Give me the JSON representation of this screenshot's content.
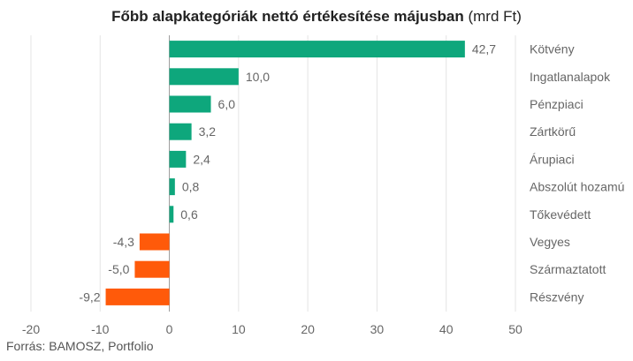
{
  "title": {
    "main": "Főbb alapkategóriák nettó értékesítése májusban",
    "unit": "(mrd Ft)"
  },
  "source": "Forrás: BAMOSZ, Portfolio",
  "chart_data": {
    "type": "bar",
    "orientation": "horizontal",
    "title": "Főbb alapkategóriák nettó értékesítése májusban (mrd Ft)",
    "categories": [
      "Kötvény",
      "Ingatlanalapok",
      "Pénzpiaci",
      "Zártkörű",
      "Árupiaci",
      "Abszolút hozamú",
      "Tőkevédett",
      "Vegyes",
      "Származtatott",
      "Részvény"
    ],
    "values": [
      42.7,
      10.0,
      6.0,
      3.2,
      2.4,
      0.8,
      0.6,
      -4.3,
      -5.0,
      -9.2
    ],
    "value_labels": [
      "42,7",
      "10,0",
      "6,0",
      "3,2",
      "2,4",
      "0,8",
      "0,6",
      "-4,3",
      "-5,0",
      "-9,2"
    ],
    "xlim": [
      -20,
      50
    ],
    "xticks": [
      -20,
      -10,
      0,
      10,
      20,
      30,
      40,
      50
    ],
    "xtick_labels": [
      "-20",
      "-10",
      "0",
      "10",
      "20",
      "30",
      "40",
      "50"
    ],
    "grid": true,
    "legend": "none",
    "colors": {
      "positive": "#0ea77c",
      "negative": "#ff5a0a",
      "grid": "#e4e4e4",
      "axis": "#999999",
      "label": "#666666"
    }
  }
}
